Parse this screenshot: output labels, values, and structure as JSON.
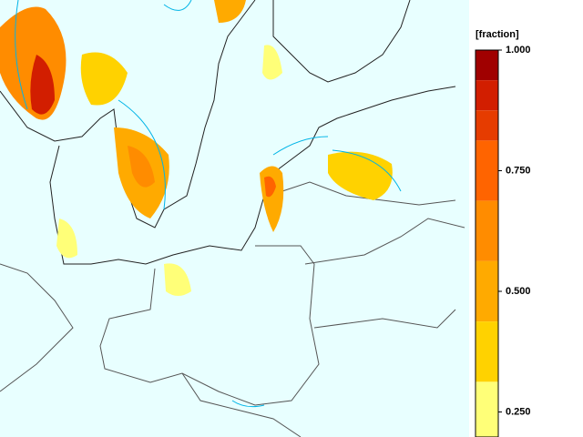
{
  "colorbar": {
    "label": "[fraction]",
    "lim": [
      0.2,
      1.0
    ],
    "ticks": [
      {
        "value": 1.0,
        "label": "1.000"
      },
      {
        "value": 0.75,
        "label": "0.750"
      },
      {
        "value": 0.5,
        "label": "0.500"
      },
      {
        "value": 0.25,
        "label": "0.250"
      }
    ],
    "bands": [
      {
        "from": 0.9375,
        "to": 1.0,
        "color": "#a00000"
      },
      {
        "from": 0.875,
        "to": 0.9375,
        "color": "#d21e00"
      },
      {
        "from": 0.8125,
        "to": 0.875,
        "color": "#e63c00"
      },
      {
        "from": 0.6875,
        "to": 0.8125,
        "color": "#ff6400"
      },
      {
        "from": 0.5625,
        "to": 0.6875,
        "color": "#ff8c00"
      },
      {
        "from": 0.4375,
        "to": 0.5625,
        "color": "#ffaa00"
      },
      {
        "from": 0.3125,
        "to": 0.4375,
        "color": "#ffd200"
      },
      {
        "from": 0.1875,
        "to": 0.3125,
        "color": "#ffff78"
      }
    ]
  }
}
